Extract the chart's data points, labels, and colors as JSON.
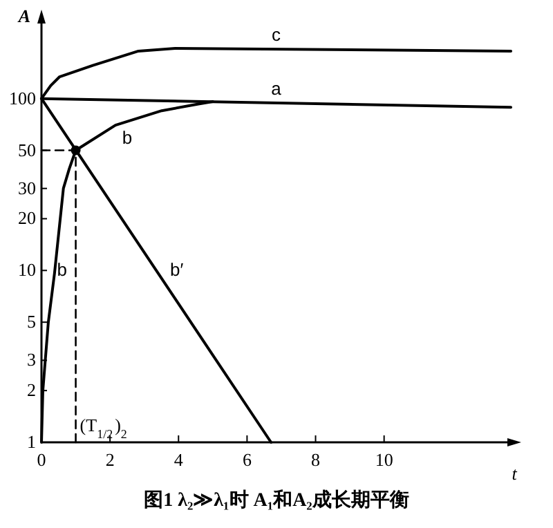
{
  "chart_data": {
    "type": "line",
    "title": "图1  λ₂≫λ₁时 A₁和A₂成长期平衡",
    "xlabel": "t",
    "ylabel": "A",
    "log": "y",
    "xlim": [
      0,
      13.8
    ],
    "ylim": [
      1,
      300
    ],
    "xticks": [
      0,
      2,
      4,
      6,
      8,
      10
    ],
    "yticks": [
      1,
      2,
      3,
      5,
      10,
      20,
      30,
      50,
      100
    ],
    "series": [
      {
        "name": "a",
        "color": "#000000",
        "x": [
          0,
          13.7
        ],
        "values": [
          100,
          89
        ]
      },
      {
        "name": "b",
        "color": "#000000",
        "x": [
          0,
          0.04,
          0.2,
          0.38,
          0.64,
          0.81,
          1,
          2.16,
          3.51,
          4.58,
          5
        ],
        "values": [
          1,
          2,
          5,
          9.6,
          30,
          39,
          50,
          70,
          85,
          93,
          96
        ]
      },
      {
        "name": "c",
        "color": "#000000",
        "x": [
          0,
          0.27,
          0.53,
          1.5,
          2.83,
          3.9,
          13.7
        ],
        "values": [
          100,
          119,
          134,
          156,
          189,
          196,
          189
        ]
      },
      {
        "name": "b′",
        "color": "#000000",
        "x": [
          0,
          6.7
        ],
        "values": [
          100,
          1
        ]
      },
      {
        "type": "line",
        "color": "#000000",
        "line_style": "dashed",
        "x": [
          0,
          1,
          1
        ],
        "values": [
          50,
          50,
          1
        ]
      },
      {
        "type": "scatter",
        "color": "#000000",
        "marker": "circle",
        "x": [
          1
        ],
        "values": [
          50
        ]
      }
    ],
    "annotations": [
      {
        "text": "b",
        "x": 0.6,
        "y": 10
      },
      {
        "text": "(T$_{1/2}$)$_{2}$",
        "x": 1,
        "y": 1
      }
    ]
  }
}
